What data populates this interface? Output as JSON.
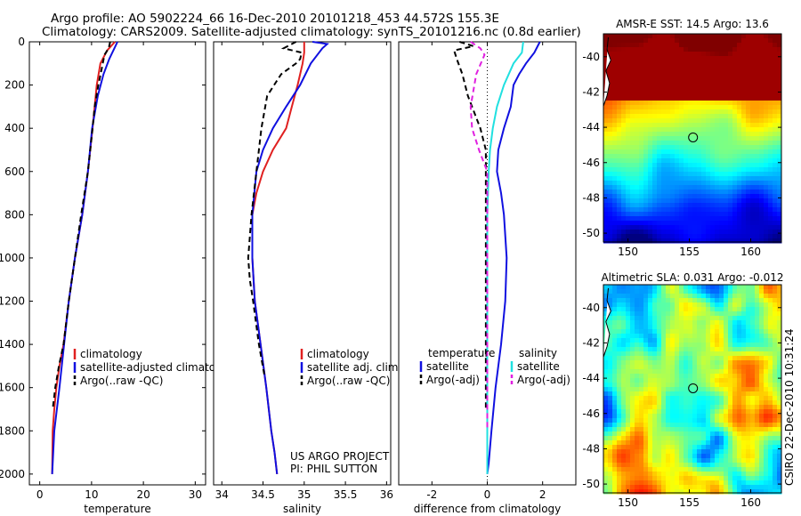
{
  "header": {
    "line1": "Argo profile: AO 5902224_66 16-Dec-2010 20101218_453 44.572S 155.3E",
    "line2": "Climatology: CARS2009. Satellite-adjusted climatology: synTS_20101216.nc (0.8d earlier)"
  },
  "side_label": "CSIRO 22-Dec-2010 10:31:24",
  "colors": {
    "climatology": "#e02020",
    "satellite": "#1010e0",
    "argo": "#000000",
    "salinity_satellite": "#20e0e0",
    "salinity_argo": "#e020e0"
  },
  "chart_data": [
    {
      "type": "line",
      "title": "",
      "xlabel": "temperature",
      "ylabel": "",
      "xlim": [
        -2,
        32
      ],
      "ylim": [
        0,
        2050
      ],
      "y_reversed": true,
      "xticks": [
        0,
        10,
        20,
        30
      ],
      "yticks": [
        0,
        200,
        400,
        600,
        800,
        1000,
        1200,
        1400,
        1600,
        1800,
        2000
      ],
      "legend": [
        "climatology",
        "satellite-adjusted climatology",
        "Argo(..raw -QC)"
      ],
      "series": [
        {
          "name": "climatology",
          "color": "#e02020",
          "dash": "",
          "x": [
            14.5,
            13.0,
            11.7,
            11.0,
            10.2,
            9.3,
            8.2,
            6.8,
            5.6,
            4.6,
            3.8,
            3.2,
            2.8,
            2.5,
            2.4
          ],
          "y": [
            0,
            40,
            100,
            200,
            400,
            600,
            800,
            1000,
            1200,
            1400,
            1500,
            1600,
            1700,
            1800,
            2000
          ]
        },
        {
          "name": "satellite-adjusted climatology",
          "color": "#1010e0",
          "dash": "",
          "x": [
            15.0,
            14.4,
            13.4,
            12.3,
            11.2,
            10.1,
            9.3,
            8.2,
            6.8,
            5.6,
            4.7,
            3.8,
            2.8,
            2.4
          ],
          "y": [
            0,
            30,
            80,
            150,
            250,
            400,
            600,
            800,
            1000,
            1200,
            1400,
            1600,
            1800,
            2000
          ]
        },
        {
          "name": "Argo(..raw -QC)",
          "color": "#000000",
          "dash": "6,4",
          "x": [
            13.6,
            13.3,
            12.5,
            12.0,
            11.3,
            10.6,
            10.2,
            9.3,
            8.0,
            6.8,
            5.6,
            4.6,
            3.7,
            3.0,
            2.5
          ],
          "y": [
            0,
            30,
            60,
            120,
            200,
            300,
            400,
            600,
            800,
            1000,
            1200,
            1400,
            1500,
            1600,
            1700
          ]
        }
      ]
    },
    {
      "type": "line",
      "title": "",
      "xlabel": "salinity",
      "ylabel": "",
      "xlim": [
        33.9,
        36.05
      ],
      "ylim": [
        0,
        2050
      ],
      "y_reversed": true,
      "xticks": [
        34,
        34.5,
        35,
        35.5,
        36
      ],
      "legend": [
        "climatology",
        "satellite adj. clim.",
        "Argo(..raw -QC)"
      ],
      "annotations": [
        "US ARGO PROJECT",
        "PI: PHIL SUTTON"
      ],
      "series": [
        {
          "name": "climatology",
          "color": "#e02020",
          "dash": "",
          "x": [
            35.0,
            35.0,
            34.98,
            34.92,
            34.85,
            34.78,
            34.62,
            34.5,
            34.42,
            34.37,
            34.37,
            34.4,
            34.47,
            34.54,
            34.6,
            34.64,
            34.67
          ],
          "y": [
            0,
            50,
            100,
            200,
            300,
            400,
            500,
            600,
            700,
            800,
            1000,
            1200,
            1400,
            1600,
            1800,
            1900,
            2000
          ]
        },
        {
          "name": "satellite adj. clim.",
          "color": "#1010e0",
          "dash": "",
          "x": [
            35.1,
            35.28,
            35.22,
            35.08,
            34.95,
            34.78,
            34.62,
            34.5,
            34.42,
            34.37,
            34.37,
            34.4,
            34.47,
            34.54,
            34.6,
            34.64,
            34.67
          ],
          "y": [
            0,
            10,
            30,
            100,
            200,
            300,
            400,
            500,
            600,
            800,
            1000,
            1200,
            1400,
            1600,
            1800,
            1900,
            2000
          ]
        },
        {
          "name": "Argo(..raw -QC)",
          "color": "#000000",
          "dash": "6,4",
          "x": [
            34.9,
            34.75,
            34.97,
            34.95,
            34.9,
            34.72,
            34.55,
            34.48,
            34.42,
            34.36,
            34.32,
            34.34,
            34.38,
            34.45,
            34.52
          ],
          "y": [
            0,
            30,
            50,
            80,
            100,
            150,
            250,
            400,
            600,
            800,
            1000,
            1100,
            1200,
            1400,
            1550
          ]
        }
      ]
    },
    {
      "type": "line",
      "title": "",
      "xlabel": "difference from climatology",
      "ylabel": "",
      "xlim": [
        -3.2,
        3.2
      ],
      "ylim": [
        0,
        2050
      ],
      "y_reversed": true,
      "xticks": [
        -2,
        0,
        2
      ],
      "legend_groups": {
        "temperature": [
          "satellite",
          "Argo(-adj)"
        ],
        "salinity": [
          "satellite",
          "Argo(-adj)"
        ]
      },
      "series": [
        {
          "name": "temperature satellite",
          "color": "#1010e0",
          "dash": "",
          "x": [
            1.9,
            1.7,
            1.4,
            1.15,
            0.95,
            0.85,
            0.6,
            0.4,
            0.35,
            0.5,
            0.6,
            0.7,
            0.65,
            0.5,
            0.3,
            0.15,
            0.05,
            0.0
          ],
          "y": [
            0,
            50,
            100,
            150,
            200,
            300,
            400,
            500,
            600,
            700,
            800,
            1000,
            1200,
            1400,
            1600,
            1800,
            1950,
            2000
          ]
        },
        {
          "name": "temperature Argo(-adj)",
          "color": "#000000",
          "dash": "6,4",
          "x": [
            -1.0,
            -0.5,
            -1.2,
            -1.1,
            -0.9,
            -0.7,
            -0.25,
            -0.05,
            -0.05,
            -0.05,
            -0.05,
            -0.05,
            -0.05,
            -0.05
          ],
          "y": [
            0,
            20,
            40,
            80,
            150,
            250,
            400,
            500,
            550,
            700,
            1000,
            1300,
            1500,
            1700
          ]
        },
        {
          "name": "salinity satellite",
          "color": "#20e0e0",
          "dash": "",
          "x": [
            1.3,
            1.25,
            0.95,
            0.6,
            0.35,
            0.2,
            0.1,
            0.05,
            0.0,
            0.0
          ],
          "y": [
            0,
            50,
            100,
            200,
            300,
            400,
            500,
            600,
            800,
            2000
          ]
        },
        {
          "name": "salinity Argo(-adj)",
          "color": "#e020e0",
          "dash": "6,4",
          "x": [
            -0.6,
            -0.25,
            -0.1,
            -0.4,
            -0.6,
            -0.55,
            -0.3,
            0.0,
            0.0,
            0.0
          ],
          "y": [
            0,
            30,
            60,
            150,
            300,
            400,
            500,
            600,
            800,
            1800
          ]
        }
      ]
    },
    {
      "type": "heatmap",
      "title": "AMSR-E SST: 14.5 Argo: 13.6",
      "xlabel": "",
      "ylabel": "",
      "xlim": [
        148,
        162.5
      ],
      "ylim": [
        -50.5,
        -38.7
      ],
      "xticks": [
        150,
        155,
        160
      ],
      "yticks": [
        -40,
        -42,
        -44,
        -46,
        -48,
        -50
      ],
      "marker": {
        "lon": 155.3,
        "lat": -44.572
      }
    },
    {
      "type": "heatmap",
      "title": "Altimetric SLA: 0.031 Argo: -0.012",
      "xlabel": "",
      "ylabel": "",
      "xlim": [
        148,
        162.5
      ],
      "ylim": [
        -50.5,
        -38.7
      ],
      "xticks": [
        150,
        155,
        160
      ],
      "yticks": [
        -40,
        -42,
        -44,
        -46,
        -48,
        -50
      ],
      "marker": {
        "lon": 155.3,
        "lat": -44.572
      }
    }
  ]
}
